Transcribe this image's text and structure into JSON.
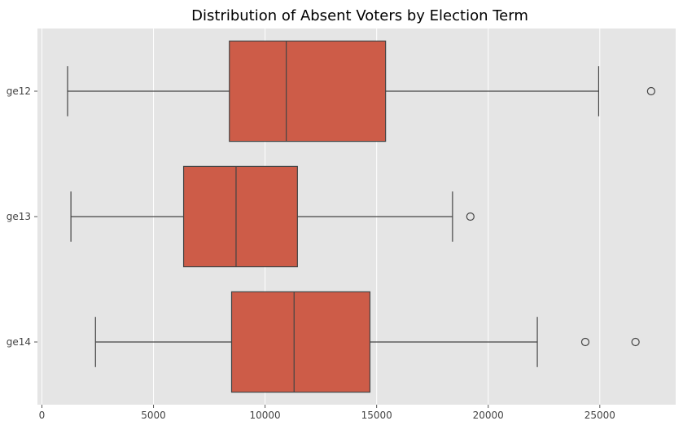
{
  "chart_data": {
    "type": "boxplot",
    "orientation": "horizontal",
    "title": "Distribution of Absent Voters by Election Term",
    "xlabel": "",
    "ylabel": "",
    "xlim": [
      -200,
      28400
    ],
    "xticks": [
      0,
      5000,
      10000,
      15000,
      20000,
      25000
    ],
    "xtick_labels": [
      "0",
      "5000",
      "10000",
      "15000",
      "20000",
      "25000"
    ],
    "grid": true,
    "colors": {
      "box_fill": "#cd5c48",
      "line": "#444444",
      "plot_bg": "#e5e5e5",
      "grid": "#ffffff"
    },
    "categories": [
      "ge12",
      "ge13",
      "ge14"
    ],
    "boxes": [
      {
        "label": "ge12",
        "whisker_low": 1150,
        "q1": 8400,
        "median": 10950,
        "q3": 15400,
        "whisker_high": 24950,
        "outliers": [
          27300
        ]
      },
      {
        "label": "ge13",
        "whisker_low": 1300,
        "q1": 6350,
        "median": 8700,
        "q3": 11450,
        "whisker_high": 18400,
        "outliers": [
          19200
        ]
      },
      {
        "label": "ge14",
        "whisker_low": 2400,
        "q1": 8500,
        "median": 11300,
        "q3": 14700,
        "whisker_high": 22200,
        "outliers": [
          24350,
          26600
        ]
      }
    ]
  }
}
